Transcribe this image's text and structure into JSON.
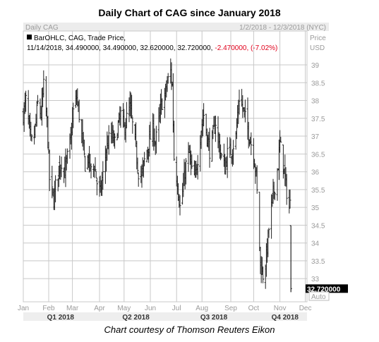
{
  "title": "Daily Chart of CAG since January 2018",
  "caption": "Chart courtesy of Thomson Reuters Eikon",
  "header": {
    "left": "Daily CAG",
    "right": "1/2/2018 - 12/3/2018 (NYC)"
  },
  "legend": {
    "series": "BarOHLC, CAG, Trade Price,",
    "quote_prefix": "11/14/2018, 34.490000, 34.490000, 32.620000, 32.720000,",
    "quote_change": "-2.470000, (-7.02%)"
  },
  "axis": {
    "unit_label_1": "Price",
    "unit_label_2": "USD",
    "auto_label": "Auto",
    "last_price_label": "32.720000"
  },
  "colors": {
    "bars": "#222222",
    "grid": "#c8c8c8",
    "change_negative": "#e0001b",
    "last_price_bg": "#000000"
  },
  "chart_data": {
    "type": "bar",
    "subtype": "ohlc",
    "title": "Daily Chart of CAG since January 2018",
    "xlabel": "",
    "ylabel": "Price USD",
    "ylim": [
      32.5,
      40.0
    ],
    "y_ticks": [
      33,
      33.5,
      34,
      34.5,
      35,
      35.5,
      36,
      36.5,
      37,
      37.5,
      38,
      38.5,
      39
    ],
    "x_month_labels": [
      "Jan",
      "Feb",
      "Mar",
      "Apr",
      "May",
      "Jun",
      "Jul",
      "Aug",
      "Sep",
      "Oct",
      "Nov",
      "Dec"
    ],
    "x_quarter_labels": [
      "Q1 2018",
      "Q2 2018",
      "Q3 2018",
      "Q4 2018"
    ],
    "x_range": [
      "2018-01-02",
      "2018-12-03"
    ],
    "grid": true,
    "last_price": 32.72,
    "last_bar": {
      "date": "2018-11-14",
      "open": 34.49,
      "high": 34.49,
      "low": 32.62,
      "close": 32.72
    },
    "close_path": [
      [
        "2018-01-02",
        37.6
      ],
      [
        "2018-01-05",
        38.0
      ],
      [
        "2018-01-08",
        37.4
      ],
      [
        "2018-01-11",
        36.8
      ],
      [
        "2018-01-15",
        37.0
      ],
      [
        "2018-01-19",
        37.9
      ],
      [
        "2018-01-23",
        37.6
      ],
      [
        "2018-01-26",
        38.4
      ],
      [
        "2018-01-30",
        37.4
      ],
      [
        "2018-02-02",
        35.8
      ],
      [
        "2018-02-05",
        35.4
      ],
      [
        "2018-02-07",
        35.2
      ],
      [
        "2018-02-09",
        35.6
      ],
      [
        "2018-02-13",
        36.1
      ],
      [
        "2018-02-16",
        36.3
      ],
      [
        "2018-02-20",
        36.0
      ],
      [
        "2018-02-23",
        36.4
      ],
      [
        "2018-02-27",
        36.9
      ],
      [
        "2018-03-02",
        37.7
      ],
      [
        "2018-03-06",
        38.1
      ],
      [
        "2018-03-09",
        37.6
      ],
      [
        "2018-03-13",
        36.8
      ],
      [
        "2018-03-16",
        36.2
      ],
      [
        "2018-03-20",
        36.4
      ],
      [
        "2018-03-23",
        36.0
      ],
      [
        "2018-03-27",
        36.2
      ],
      [
        "2018-03-30",
        35.7
      ],
      [
        "2018-04-03",
        35.4
      ],
      [
        "2018-04-06",
        35.9
      ],
      [
        "2018-04-10",
        36.6
      ],
      [
        "2018-04-13",
        36.9
      ],
      [
        "2018-04-17",
        37.0
      ],
      [
        "2018-04-20",
        36.8
      ],
      [
        "2018-04-24",
        37.3
      ],
      [
        "2018-04-27",
        37.6
      ],
      [
        "2018-05-01",
        37.2
      ],
      [
        "2018-05-04",
        37.5
      ],
      [
        "2018-05-08",
        37.8
      ],
      [
        "2018-05-11",
        37.3
      ],
      [
        "2018-05-15",
        36.6
      ],
      [
        "2018-05-18",
        36.0
      ],
      [
        "2018-05-22",
        35.9
      ],
      [
        "2018-05-25",
        36.3
      ],
      [
        "2018-05-30",
        36.8
      ],
      [
        "2018-06-04",
        37.2
      ],
      [
        "2018-06-07",
        36.8
      ],
      [
        "2018-06-11",
        37.4
      ],
      [
        "2018-06-14",
        37.9
      ],
      [
        "2018-06-18",
        38.1
      ],
      [
        "2018-06-21",
        38.5
      ],
      [
        "2018-06-25",
        38.8
      ],
      [
        "2018-06-27",
        38.4
      ],
      [
        "2018-06-29",
        36.4
      ],
      [
        "2018-07-03",
        35.7
      ],
      [
        "2018-07-06",
        35.0
      ],
      [
        "2018-07-10",
        35.6
      ],
      [
        "2018-07-13",
        36.2
      ],
      [
        "2018-07-17",
        36.5
      ],
      [
        "2018-07-20",
        36.0
      ],
      [
        "2018-07-24",
        35.8
      ],
      [
        "2018-07-27",
        36.4
      ],
      [
        "2018-07-31",
        37.2
      ],
      [
        "2018-08-03",
        37.6
      ],
      [
        "2018-08-07",
        37.0
      ],
      [
        "2018-08-10",
        36.6
      ],
      [
        "2018-08-14",
        37.0
      ],
      [
        "2018-08-17",
        37.4
      ],
      [
        "2018-08-21",
        36.8
      ],
      [
        "2018-08-24",
        36.4
      ],
      [
        "2018-08-28",
        36.1
      ],
      [
        "2018-08-31",
        36.5
      ],
      [
        "2018-09-05",
        36.6
      ],
      [
        "2018-09-10",
        37.0
      ],
      [
        "2018-09-14",
        38.1
      ],
      [
        "2018-09-19",
        37.7
      ],
      [
        "2018-09-24",
        37.2
      ],
      [
        "2018-09-27",
        36.9
      ],
      [
        "2018-10-01",
        36.5
      ],
      [
        "2018-10-04",
        35.9
      ],
      [
        "2018-10-09",
        33.4
      ],
      [
        "2018-10-12",
        33.1
      ],
      [
        "2018-10-16",
        33.6
      ],
      [
        "2018-10-19",
        34.4
      ],
      [
        "2018-10-23",
        35.2
      ],
      [
        "2018-10-26",
        35.6
      ],
      [
        "2018-10-30",
        36.2
      ],
      [
        "2018-11-01",
        36.8
      ],
      [
        "2018-11-05",
        36.2
      ],
      [
        "2018-11-08",
        35.6
      ],
      [
        "2018-11-12",
        35.0
      ],
      [
        "2018-11-13",
        35.1
      ],
      [
        "2018-11-14",
        32.72
      ]
    ]
  }
}
